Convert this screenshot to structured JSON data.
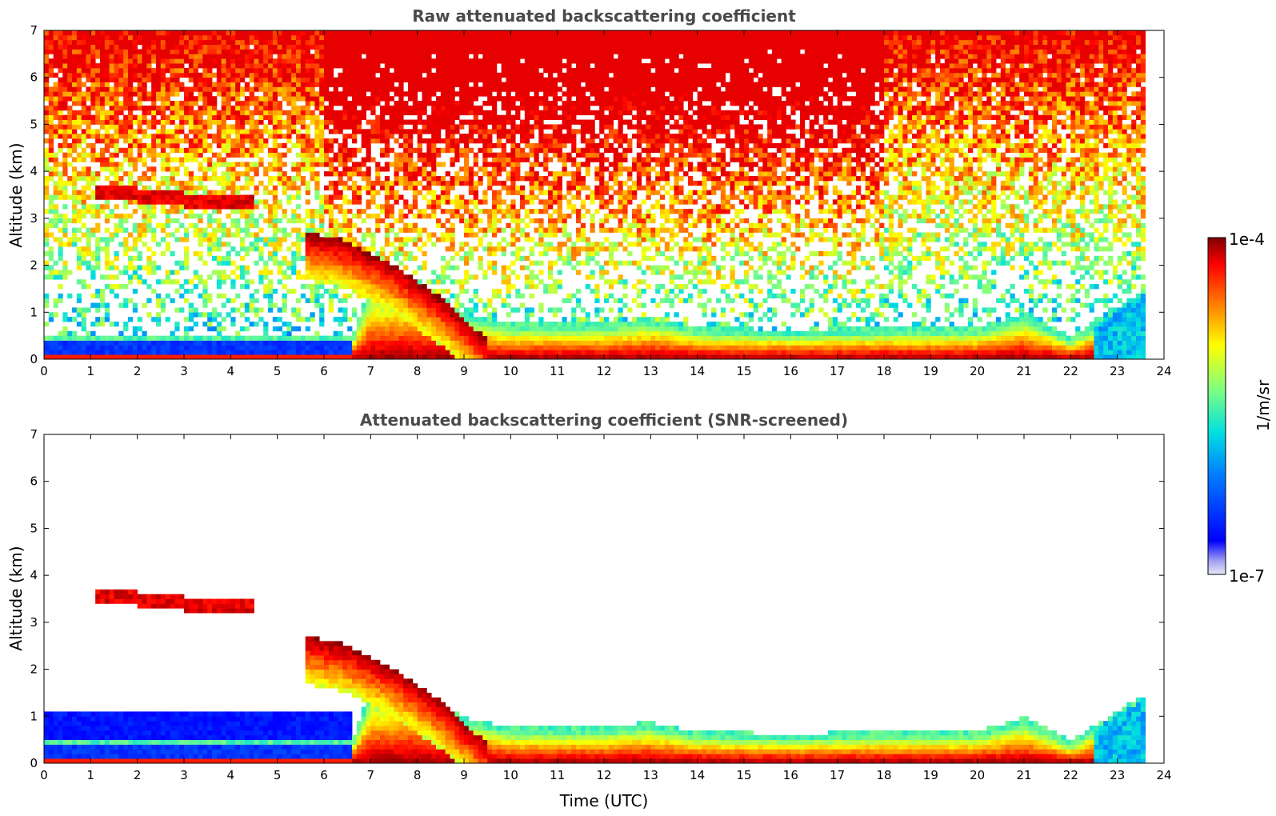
{
  "chart_data": [
    {
      "type": "heatmap",
      "title": "Raw attenuated backscattering coefficient",
      "xlabel": "",
      "ylabel": "Altitude (km)",
      "xlim": [
        0,
        24
      ],
      "ylim": [
        0,
        7
      ],
      "xticks": [
        "0",
        "1",
        "2",
        "3",
        "4",
        "5",
        "6",
        "7",
        "8",
        "9",
        "10",
        "11",
        "12",
        "13",
        "14",
        "15",
        "16",
        "17",
        "18",
        "19",
        "20",
        "21",
        "22",
        "23",
        "24"
      ],
      "yticks": [
        "0",
        "1",
        "2",
        "3",
        "4",
        "5",
        "6",
        "7"
      ],
      "grid": false,
      "data_end_hour": 23.6,
      "features": {
        "boundary_layer_top_km": [
          {
            "t": 0,
            "z": 0.4
          },
          {
            "t": 6.6,
            "z": 0.4
          },
          {
            "t": 7,
            "z": 1.5
          },
          {
            "t": 8,
            "z": 1.5
          },
          {
            "t": 9,
            "z": 0.9
          },
          {
            "t": 10,
            "z": 0.7
          },
          {
            "t": 12,
            "z": 0.7
          },
          {
            "t": 13,
            "z": 0.8
          },
          {
            "t": 14,
            "z": 0.6
          },
          {
            "t": 16,
            "z": 0.55
          },
          {
            "t": 18,
            "z": 0.6
          },
          {
            "t": 20,
            "z": 0.6
          },
          {
            "t": 21,
            "z": 0.9
          },
          {
            "t": 22,
            "z": 0.4
          },
          {
            "t": 23.6,
            "z": 1.4
          }
        ],
        "aerosol_layer_km": [
          {
            "t": 1.1,
            "z": 3.6
          },
          {
            "t": 2,
            "z": 3.5
          },
          {
            "t": 3,
            "z": 3.4
          },
          {
            "t": 4.5,
            "z": 3.3
          }
        ],
        "descending_plume_km": [
          {
            "t": 5.6,
            "z": 2.6
          },
          {
            "t": 6.5,
            "z": 2.4
          },
          {
            "t": 7.5,
            "z": 1.9
          },
          {
            "t": 8.5,
            "z": 1.2
          },
          {
            "t": 9.5,
            "z": 0.3
          }
        ]
      }
    },
    {
      "type": "heatmap",
      "title": "Attenuated backscattering coefficient (SNR-screened)",
      "xlabel": "Time (UTC)",
      "ylabel": "Altitude (km)",
      "xlim": [
        0,
        24
      ],
      "ylim": [
        0,
        7
      ],
      "xticks": [
        "0",
        "1",
        "2",
        "3",
        "4",
        "5",
        "6",
        "7",
        "8",
        "9",
        "10",
        "11",
        "12",
        "13",
        "14",
        "15",
        "16",
        "17",
        "18",
        "19",
        "20",
        "21",
        "22",
        "23",
        "24"
      ],
      "yticks": [
        "0",
        "1",
        "2",
        "3",
        "4",
        "5",
        "6",
        "7"
      ],
      "grid": false,
      "data_end_hour": 23.6
    }
  ],
  "colorbar": {
    "label": "1/m/sr",
    "max_label": "1e-4",
    "min_label": "1e-7",
    "scale": "log",
    "colormap": [
      "#e8e8f8",
      "#0000ff",
      "#0080ff",
      "#00e0e0",
      "#80ff80",
      "#ffff00",
      "#ff8000",
      "#ff0000",
      "#800000"
    ]
  }
}
